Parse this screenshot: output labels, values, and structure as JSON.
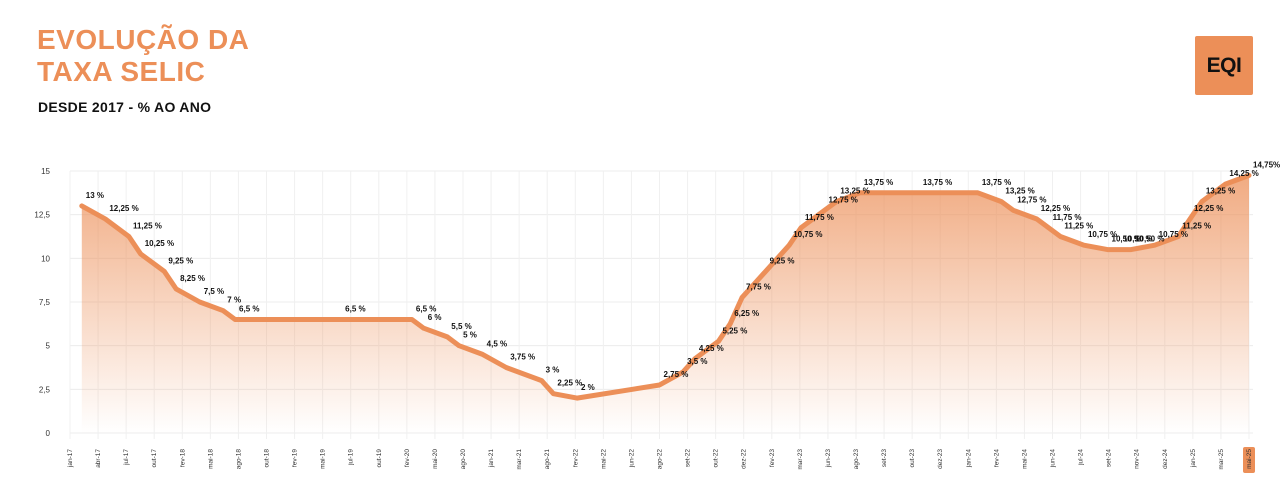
{
  "header": {
    "title_line1": "EVOLUÇÃO DA",
    "title_line2": "TAXA SELIC",
    "subtitle": "DESDE 2017 - % AO ANO",
    "logo_text": "EQI"
  },
  "colors": {
    "accent": "#ec8f58",
    "line": "#ec8f58",
    "text": "#111111"
  },
  "chart_data": {
    "type": "area",
    "title": "EVOLUÇÃO DA TAXA SELIC",
    "subtitle": "DESDE 2017 - % AO ANO",
    "xlabel": "",
    "ylabel": "",
    "ylim": [
      0,
      15
    ],
    "yticks": [
      "0",
      "2,5",
      "5",
      "7,5",
      "10",
      "12,5",
      "15"
    ],
    "grid": true,
    "x_tick_labels": [
      "jan-17",
      "abr-17",
      "jul-17",
      "out-17",
      "fev-18",
      "mai-18",
      "ago-18",
      "out-18",
      "fev-19",
      "mai-19",
      "jul-19",
      "out-19",
      "fev-20",
      "mai-20",
      "ago-20",
      "jan-21",
      "mar-21",
      "ago-21",
      "fev-22",
      "mai-22",
      "jun-22",
      "ago-22",
      "set-22",
      "out-22",
      "dez-22",
      "fev-23",
      "mar-23",
      "jun-23",
      "ago-23",
      "set-23",
      "out-23",
      "dez-23",
      "jan-24",
      "fev-24",
      "mai-24",
      "jun-24",
      "jul-24",
      "set-24",
      "nov-24",
      "dez-24",
      "jan-25",
      "mar-25",
      "mai-25"
    ],
    "highlighted_x_tick": "mai-25",
    "series": [
      {
        "points": [
          {
            "label": "13 %",
            "x": "2017-02",
            "y": 13.0
          },
          {
            "label": "12,25 %",
            "x": "2017-04",
            "y": 12.25
          },
          {
            "label": "11,25 %",
            "x": "2017-06",
            "y": 11.25
          },
          {
            "label": "10,25 %",
            "x": "2017-07",
            "y": 10.25
          },
          {
            "label": "9,25 %",
            "x": "2017-09",
            "y": 9.25
          },
          {
            "label": "8,25 %",
            "x": "2017-10",
            "y": 8.25
          },
          {
            "label": "7,5 %",
            "x": "2017-12",
            "y": 7.5
          },
          {
            "label": "7 %",
            "x": "2018-02",
            "y": 7.0
          },
          {
            "label": "6,5 %",
            "x": "2018-03",
            "y": 6.5
          },
          {
            "label": "6,5 %",
            "x": "2018-12",
            "y": 6.5
          },
          {
            "label": "6,5 %",
            "x": "2019-06",
            "y": 6.5
          },
          {
            "label": "6 %",
            "x": "2019-07",
            "y": 6.0
          },
          {
            "label": "5,5 %",
            "x": "2019-09",
            "y": 5.5
          },
          {
            "label": "5 %",
            "x": "2019-10",
            "y": 5.0
          },
          {
            "label": "4,5 %",
            "x": "2019-12",
            "y": 4.5
          },
          {
            "label": "3,75 %",
            "x": "2020-02",
            "y": 3.75
          },
          {
            "label": "3 %",
            "x": "2020-05",
            "y": 3.0
          },
          {
            "label": "2,25 %",
            "x": "2020-06",
            "y": 2.25
          },
          {
            "label": "2 %",
            "x": "2020-08",
            "y": 2.0
          },
          {
            "label": "2,75 %",
            "x": "2021-03",
            "y": 2.75
          },
          {
            "label": "3,5 %",
            "x": "2021-05",
            "y": 3.5
          },
          {
            "label": "4,25 %",
            "x": "2021-06",
            "y": 4.25
          },
          {
            "label": "5,25 %",
            "x": "2021-08",
            "y": 5.25
          },
          {
            "label": "6,25 %",
            "x": "2021-09",
            "y": 6.25
          },
          {
            "label": "7,75 %",
            "x": "2021-10",
            "y": 7.75
          },
          {
            "label": "9,25 %",
            "x": "2021-12",
            "y": 9.25
          },
          {
            "label": "10,75 %",
            "x": "2022-02",
            "y": 10.75
          },
          {
            "label": "11,75 %",
            "x": "2022-03",
            "y": 11.75
          },
          {
            "label": "12,75 %",
            "x": "2022-05",
            "y": 12.75
          },
          {
            "label": "13,25 %",
            "x": "2022-06",
            "y": 13.25
          },
          {
            "label": "13,75 %",
            "x": "2022-08",
            "y": 13.75
          },
          {
            "label": "13,75 %",
            "x": "2023-01",
            "y": 13.75
          },
          {
            "label": "13,75 %",
            "x": "2023-06",
            "y": 13.75
          },
          {
            "label": "13,25 %",
            "x": "2023-08",
            "y": 13.25
          },
          {
            "label": "12,75 %",
            "x": "2023-09",
            "y": 12.75
          },
          {
            "label": "12,25 %",
            "x": "2023-11",
            "y": 12.25
          },
          {
            "label": "11,75 %",
            "x": "2023-12",
            "y": 11.75
          },
          {
            "label": "11,25 %",
            "x": "2024-01",
            "y": 11.25
          },
          {
            "label": "10,75 %",
            "x": "2024-03",
            "y": 10.75
          },
          {
            "label": "10,50 %",
            "x": "2024-05",
            "y": 10.5
          },
          {
            "label": "10,50 %",
            "x": "2024-06",
            "y": 10.5
          },
          {
            "label": "10,50 %",
            "x": "2024-07",
            "y": 10.5
          },
          {
            "label": "10,75 %",
            "x": "2024-09",
            "y": 10.75
          },
          {
            "label": "11,25 %",
            "x": "2024-11",
            "y": 11.25
          },
          {
            "label": "12,25 %",
            "x": "2024-12",
            "y": 12.25
          },
          {
            "label": "13,25 %",
            "x": "2025-01",
            "y": 13.25
          },
          {
            "label": "14,25 %",
            "x": "2025-03",
            "y": 14.25
          },
          {
            "label": "14,75%",
            "x": "2025-05",
            "y": 14.75
          }
        ]
      }
    ]
  }
}
